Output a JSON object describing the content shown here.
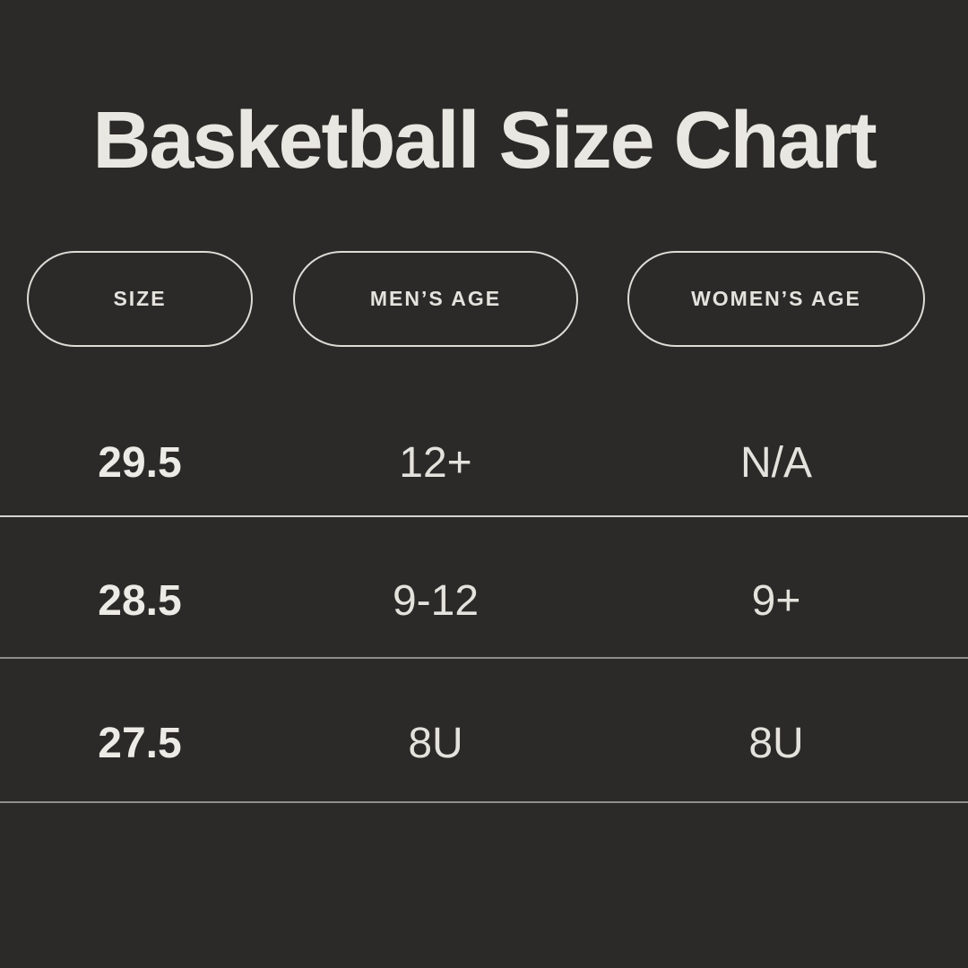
{
  "page": {
    "title": "Basketball Size Chart",
    "background_color": "#2b2a28",
    "text_color": "#e9e7e1",
    "pill_border_color": "#dedcd6",
    "divider_color_primary": "#d6d4cf",
    "divider_color_secondary": "#8f8e8c"
  },
  "headers": [
    {
      "label": "SIZE"
    },
    {
      "label": "MEN’S AGE"
    },
    {
      "label": "WOMEN’S AGE"
    }
  ],
  "rows": [
    {
      "size": "29.5",
      "mens_age": "12+",
      "womens_age": "N/A"
    },
    {
      "size": "28.5",
      "mens_age": "9-12",
      "womens_age": "9+"
    },
    {
      "size": "27.5",
      "mens_age": "8U",
      "womens_age": "8U"
    }
  ],
  "chart_data": {
    "type": "table",
    "title": "Basketball Size Chart",
    "columns": [
      "SIZE",
      "MEN’S AGE",
      "WOMEN’S AGE"
    ],
    "rows": [
      [
        "29.5",
        "12+",
        "N/A"
      ],
      [
        "28.5",
        "9-12",
        "9+"
      ],
      [
        "27.5",
        "8U",
        "8U"
      ]
    ]
  }
}
